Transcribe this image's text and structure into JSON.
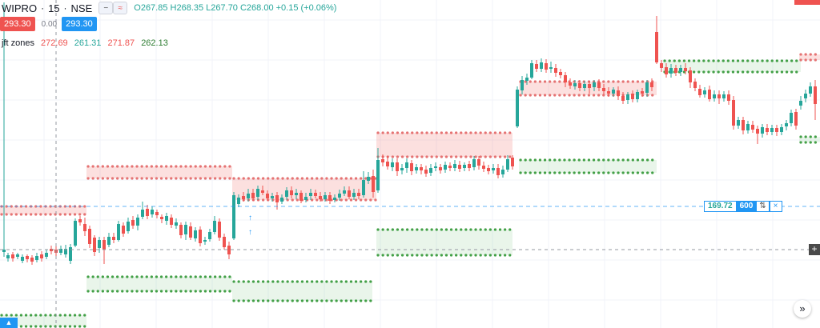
{
  "header": {
    "symbol": "WIPRO",
    "interval": "15",
    "exchange": "NSE",
    "ohlc": "O267.85 H268.35 L267.70 C268.00 +0.15 (+0.06%)"
  },
  "trade": {
    "sell_price": "293.30",
    "spread": "0.00",
    "buy_price": "293.30"
  },
  "indicator": {
    "name": "jft zones",
    "values": [
      {
        "text": "272.69",
        "color": "red"
      },
      {
        "text": "261.31",
        "color": "grn"
      },
      {
        "text": "271.87",
        "color": "red"
      },
      {
        "text": "262.13",
        "color": "dgrn"
      }
    ]
  },
  "order_line": {
    "price": "169.72",
    "qty": "600",
    "reverse": "⇅",
    "close": "×"
  },
  "icons": {
    "collapse": "minus-icon",
    "wave": "wave-icon",
    "add": "plus-icon",
    "scroll": "double-chevron-right-icon"
  },
  "colors": {
    "up": "#26a69a",
    "down": "#ef5350",
    "supply": "#e57373",
    "demand": "#43a047",
    "accent": "#2196f3"
  },
  "chart_data": {
    "type": "candlestick",
    "ylim": [
      0,
      410
    ],
    "candles": [
      [
        5,
        315,
        312,
        321,
        3
      ],
      [
        10,
        323,
        319,
        327,
        316
      ],
      [
        16,
        318,
        323,
        327,
        315
      ],
      [
        22,
        321,
        318,
        324,
        316
      ],
      [
        28,
        326,
        321,
        329,
        318
      ],
      [
        34,
        320,
        324,
        328,
        318
      ],
      [
        40,
        322,
        327,
        331,
        319
      ],
      [
        46,
        325,
        320,
        328,
        316
      ],
      [
        52,
        318,
        323,
        327,
        314
      ],
      [
        58,
        321,
        316,
        324,
        312
      ],
      [
        64,
        311,
        314,
        318,
        307
      ],
      [
        70,
        312,
        316,
        320,
        308
      ],
      [
        76,
        316,
        311,
        319,
        307
      ],
      [
        82,
        318,
        311,
        322,
        306
      ],
      [
        88,
        326,
        309,
        330,
        305
      ],
      [
        94,
        307,
        276,
        309,
        273
      ],
      [
        100,
        274,
        278,
        282,
        270
      ],
      [
        106,
        280,
        289,
        295,
        272
      ],
      [
        112,
        286,
        305,
        310,
        282
      ],
      [
        118,
        297,
        315,
        320,
        294
      ],
      [
        124,
        310,
        300,
        316,
        296
      ],
      [
        130,
        300,
        312,
        330,
        296
      ],
      [
        136,
        306,
        296,
        309,
        291
      ],
      [
        142,
        296,
        300,
        304,
        291
      ],
      [
        148,
        300,
        280,
        302,
        276
      ],
      [
        154,
        282,
        292,
        296,
        278
      ],
      [
        160,
        289,
        277,
        292,
        272
      ],
      [
        166,
        275,
        282,
        286,
        270
      ],
      [
        172,
        282,
        272,
        288,
        268
      ],
      [
        178,
        271,
        262,
        274,
        252
      ],
      [
        184,
        261,
        270,
        274,
        256
      ],
      [
        190,
        268,
        262,
        272,
        258
      ],
      [
        196,
        265,
        269,
        273,
        262
      ],
      [
        202,
        271,
        274,
        279,
        268
      ],
      [
        208,
        276,
        270,
        281,
        266
      ],
      [
        214,
        272,
        281,
        285,
        268
      ],
      [
        220,
        282,
        278,
        286,
        273
      ],
      [
        226,
        281,
        294,
        298,
        278
      ],
      [
        232,
        293,
        281,
        300,
        277
      ],
      [
        238,
        283,
        297,
        300,
        278
      ],
      [
        244,
        298,
        288,
        302,
        284
      ],
      [
        250,
        287,
        304,
        308,
        283
      ],
      [
        256,
        302,
        300,
        306,
        296
      ],
      [
        262,
        299,
        290,
        302,
        286
      ],
      [
        268,
        290,
        276,
        293,
        270
      ],
      [
        274,
        277,
        297,
        301,
        273
      ],
      [
        280,
        296,
        309,
        312,
        292
      ],
      [
        286,
        307,
        318,
        324,
        302
      ],
      [
        292,
        298,
        244,
        300,
        240
      ],
      [
        298,
        255,
        247,
        259,
        243
      ],
      [
        304,
        245,
        249,
        252,
        240
      ],
      [
        310,
        248,
        242,
        252,
        236
      ],
      [
        316,
        241,
        248,
        251,
        236
      ],
      [
        322,
        246,
        236,
        250,
        232
      ],
      [
        328,
        238,
        241,
        244,
        232
      ],
      [
        334,
        242,
        248,
        251,
        238
      ],
      [
        340,
        248,
        245,
        252,
        241
      ],
      [
        346,
        244,
        253,
        262,
        240
      ],
      [
        352,
        252,
        247,
        255,
        243
      ],
      [
        358,
        246,
        238,
        250,
        234
      ],
      [
        364,
        238,
        244,
        248,
        233
      ],
      [
        370,
        244,
        241,
        249,
        236
      ],
      [
        376,
        241,
        251,
        254,
        238
      ],
      [
        382,
        250,
        246,
        253,
        241
      ],
      [
        388,
        245,
        241,
        250,
        236
      ],
      [
        394,
        241,
        245,
        248,
        237
      ],
      [
        400,
        245,
        249,
        252,
        240
      ],
      [
        406,
        249,
        244,
        252,
        240
      ],
      [
        412,
        244,
        251,
        255,
        240
      ],
      [
        418,
        250,
        247,
        253,
        243
      ],
      [
        424,
        247,
        242,
        251,
        237
      ],
      [
        430,
        242,
        238,
        245,
        233
      ],
      [
        436,
        238,
        246,
        249,
        233
      ],
      [
        442,
        246,
        241,
        250,
        236
      ],
      [
        448,
        241,
        245,
        249,
        236
      ],
      [
        454,
        244,
        225,
        247,
        214
      ],
      [
        460,
        226,
        221,
        230,
        215
      ],
      [
        466,
        220,
        240,
        247,
        212
      ],
      [
        472,
        238,
        200,
        241,
        185
      ],
      [
        478,
        199,
        203,
        208,
        193
      ],
      [
        484,
        202,
        208,
        212,
        195
      ],
      [
        490,
        209,
        203,
        214,
        198
      ],
      [
        496,
        203,
        214,
        220,
        198
      ],
      [
        502,
        213,
        210,
        218,
        205
      ],
      [
        508,
        210,
        203,
        216,
        198
      ],
      [
        514,
        204,
        214,
        219,
        200
      ],
      [
        520,
        213,
        209,
        217,
        205
      ],
      [
        526,
        209,
        213,
        218,
        205
      ],
      [
        532,
        212,
        217,
        221,
        207
      ],
      [
        538,
        216,
        210,
        220,
        205
      ],
      [
        544,
        210,
        208,
        214,
        203
      ],
      [
        550,
        209,
        213,
        217,
        205
      ],
      [
        556,
        212,
        206,
        216,
        202
      ],
      [
        562,
        207,
        210,
        214,
        203
      ],
      [
        568,
        210,
        205,
        214,
        200
      ],
      [
        574,
        206,
        211,
        215,
        201
      ],
      [
        580,
        210,
        206,
        214,
        203
      ],
      [
        586,
        205,
        210,
        214,
        201
      ],
      [
        592,
        209,
        199,
        213,
        195
      ],
      [
        598,
        199,
        207,
        212,
        195
      ],
      [
        604,
        207,
        211,
        215,
        202
      ],
      [
        610,
        210,
        214,
        218,
        206
      ],
      [
        616,
        213,
        210,
        217,
        205
      ],
      [
        622,
        210,
        219,
        223,
        205
      ],
      [
        628,
        218,
        212,
        222,
        207
      ],
      [
        634,
        212,
        199,
        215,
        194
      ],
      [
        640,
        197,
        208,
        212,
        194
      ],
      [
        646,
        158,
        112,
        160,
        108
      ],
      [
        652,
        113,
        100,
        118,
        95
      ],
      [
        658,
        101,
        97,
        106,
        92
      ],
      [
        664,
        97,
        79,
        99,
        75
      ],
      [
        670,
        80,
        86,
        90,
        75
      ],
      [
        676,
        86,
        78,
        90,
        73
      ],
      [
        682,
        79,
        87,
        91,
        74
      ],
      [
        688,
        86,
        84,
        91,
        77
      ],
      [
        694,
        85,
        91,
        96,
        80
      ],
      [
        700,
        90,
        94,
        98,
        86
      ],
      [
        706,
        94,
        103,
        109,
        90
      ],
      [
        712,
        103,
        107,
        111,
        98
      ],
      [
        718,
        108,
        104,
        112,
        100
      ],
      [
        724,
        104,
        110,
        114,
        100
      ],
      [
        730,
        110,
        105,
        114,
        101
      ],
      [
        736,
        105,
        110,
        117,
        101
      ],
      [
        742,
        109,
        103,
        114,
        100
      ],
      [
        748,
        103,
        110,
        114,
        99
      ],
      [
        754,
        110,
        114,
        118,
        105
      ],
      [
        760,
        114,
        117,
        121,
        109
      ],
      [
        766,
        117,
        112,
        121,
        109
      ],
      [
        772,
        113,
        120,
        125,
        108
      ],
      [
        778,
        120,
        126,
        130,
        115
      ],
      [
        784,
        125,
        118,
        130,
        115
      ],
      [
        790,
        117,
        124,
        128,
        113
      ],
      [
        796,
        124,
        115,
        128,
        112
      ],
      [
        802,
        114,
        117,
        121,
        110
      ],
      [
        808,
        116,
        103,
        121,
        100
      ],
      [
        814,
        103,
        109,
        114,
        98
      ],
      [
        820,
        40,
        78,
        80,
        20
      ],
      [
        826,
        79,
        85,
        90,
        75
      ],
      [
        832,
        84,
        93,
        97,
        79
      ],
      [
        838,
        92,
        85,
        97,
        80
      ],
      [
        844,
        85,
        91,
        95,
        81
      ],
      [
        850,
        90,
        85,
        95,
        81
      ],
      [
        856,
        85,
        89,
        93,
        79
      ],
      [
        862,
        88,
        103,
        110,
        84
      ],
      [
        868,
        102,
        110,
        114,
        98
      ],
      [
        874,
        111,
        119,
        122,
        106
      ],
      [
        880,
        118,
        113,
        122,
        109
      ],
      [
        886,
        112,
        124,
        127,
        107
      ],
      [
        892,
        123,
        118,
        127,
        113
      ],
      [
        898,
        118,
        123,
        130,
        113
      ],
      [
        904,
        123,
        118,
        127,
        114
      ],
      [
        910,
        118,
        126,
        131,
        113
      ],
      [
        916,
        125,
        157,
        162,
        120
      ],
      [
        922,
        157,
        150,
        161,
        146
      ],
      [
        928,
        150,
        163,
        168,
        146
      ],
      [
        934,
        163,
        155,
        167,
        151
      ],
      [
        940,
        156,
        162,
        166,
        151
      ],
      [
        946,
        161,
        167,
        180,
        157
      ],
      [
        952,
        167,
        159,
        172,
        155
      ],
      [
        958,
        160,
        165,
        169,
        155
      ],
      [
        964,
        165,
        160,
        169,
        156
      ],
      [
        970,
        160,
        165,
        170,
        156
      ],
      [
        976,
        165,
        159,
        169,
        155
      ],
      [
        982,
        158,
        154,
        163,
        150
      ],
      [
        988,
        154,
        141,
        158,
        137
      ],
      [
        994,
        140,
        157,
        162,
        136
      ],
      [
        1000,
        132,
        126,
        137,
        120
      ],
      [
        1006,
        123,
        117,
        128,
        112
      ],
      [
        1012,
        117,
        108,
        121,
        103
      ],
      [
        1018,
        108,
        130,
        150,
        100
      ]
    ],
    "supply_zones": [
      [
        0,
        108,
        258,
        268
      ],
      [
        108,
        290,
        208,
        223
      ],
      [
        290,
        470,
        223,
        250
      ],
      [
        470,
        640,
        166,
        196
      ],
      [
        648,
        820,
        102,
        119
      ],
      [
        998,
        1024,
        68,
        75
      ]
    ],
    "demand_zones": [
      [
        0,
        108,
        394,
        408
      ],
      [
        108,
        290,
        346,
        364
      ],
      [
        290,
        465,
        352,
        376
      ],
      [
        470,
        640,
        287,
        319
      ],
      [
        648,
        820,
        200,
        216
      ],
      [
        828,
        1000,
        76,
        90
      ],
      [
        998,
        1024,
        171,
        178
      ]
    ]
  }
}
